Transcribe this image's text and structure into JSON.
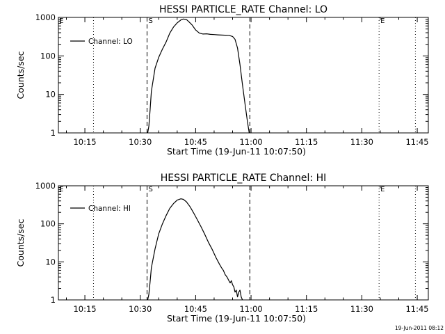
{
  "chart_data": [
    {
      "type": "line",
      "title": "HESSI PARTICLE_RATE Channel: LO",
      "xlabel": "Start Time (19-Jun-11 10:07:50)",
      "ylabel": "Counts/sec",
      "yscale": "log",
      "ylim": [
        1,
        1000
      ],
      "xlim": [
        "10:07:50",
        "11:48:00"
      ],
      "x_ticks": [
        "10:15",
        "10:30",
        "10:45",
        "11:00",
        "11:15",
        "11:30",
        "11:45"
      ],
      "y_ticks": [
        "1",
        "10",
        "100",
        "1000"
      ],
      "legend": {
        "position": "top-left",
        "entries": [
          "Channel: LO"
        ]
      },
      "markers": {
        "start_label": "S",
        "end_label": "E"
      },
      "series": [
        {
          "name": "Channel: LO",
          "color": "#000000",
          "x": [
            "10:32:00",
            "10:32:20",
            "10:32:40",
            "10:33:00",
            "10:34:00",
            "10:35:00",
            "10:36:00",
            "10:37:00",
            "10:38:00",
            "10:39:00",
            "10:40:00",
            "10:41:00",
            "10:41:40",
            "10:42:30",
            "10:43:00",
            "10:44:00",
            "10:45:00",
            "10:46:00",
            "10:47:00",
            "10:48:00",
            "10:49:00",
            "10:50:00",
            "10:51:00",
            "10:52:00",
            "10:53:00",
            "10:54:00",
            "10:55:00",
            "10:55:40",
            "10:56:20",
            "10:57:00",
            "10:57:40",
            "10:58:20",
            "10:59:00",
            "10:59:30"
          ],
          "values": [
            1,
            1.5,
            4,
            12,
            48,
            92,
            150,
            230,
            390,
            560,
            720,
            860,
            910,
            880,
            800,
            640,
            470,
            390,
            370,
            375,
            362,
            358,
            352,
            348,
            345,
            342,
            320,
            270,
            160,
            60,
            18,
            6,
            2,
            1
          ]
        }
      ]
    },
    {
      "type": "line",
      "title": "HESSI PARTICLE_RATE Channel: HI",
      "xlabel": "Start Time (19-Jun-11 10:07:50)",
      "ylabel": "Counts/sec",
      "yscale": "log",
      "ylim": [
        1,
        1000
      ],
      "xlim": [
        "10:07:50",
        "11:48:00"
      ],
      "x_ticks": [
        "10:15",
        "10:30",
        "10:45",
        "11:00",
        "11:15",
        "11:30",
        "11:45"
      ],
      "y_ticks": [
        "1",
        "10",
        "100",
        "1000"
      ],
      "legend": {
        "position": "top-left",
        "entries": [
          "Channel: HI"
        ]
      },
      "markers": {
        "start_label": "S",
        "end_label": "E"
      },
      "series": [
        {
          "name": "Channel: HI",
          "color": "#000000",
          "x": [
            "10:32:00",
            "10:32:20",
            "10:32:40",
            "10:33:00",
            "10:34:00",
            "10:35:00",
            "10:36:00",
            "10:37:00",
            "10:38:00",
            "10:39:00",
            "10:40:00",
            "10:41:00",
            "10:41:40",
            "10:42:30",
            "10:43:30",
            "10:44:30",
            "10:45:30",
            "10:46:30",
            "10:47:30",
            "10:48:30",
            "10:49:30",
            "10:50:30",
            "10:51:30",
            "10:52:00",
            "10:52:30",
            "10:53:00",
            "10:53:30",
            "10:54:00",
            "10:54:20",
            "10:54:40",
            "10:55:00",
            "10:55:20",
            "10:55:40",
            "10:56:00",
            "10:56:20",
            "10:56:40",
            "10:57:00",
            "10:57:20",
            "10:57:40"
          ],
          "values": [
            1,
            1.4,
            3,
            7,
            22,
            55,
            100,
            165,
            255,
            340,
            420,
            455,
            440,
            380,
            280,
            190,
            125,
            82,
            52,
            32,
            21,
            13,
            8.5,
            7,
            6,
            4.6,
            4,
            3.2,
            2.8,
            3.2,
            2.5,
            2.2,
            1.6,
            1.8,
            1.2,
            1.6,
            1.8,
            1.2,
            1
          ]
        }
      ]
    }
  ],
  "footer": {
    "timestamp": "19-Jun-2011 08:12"
  }
}
